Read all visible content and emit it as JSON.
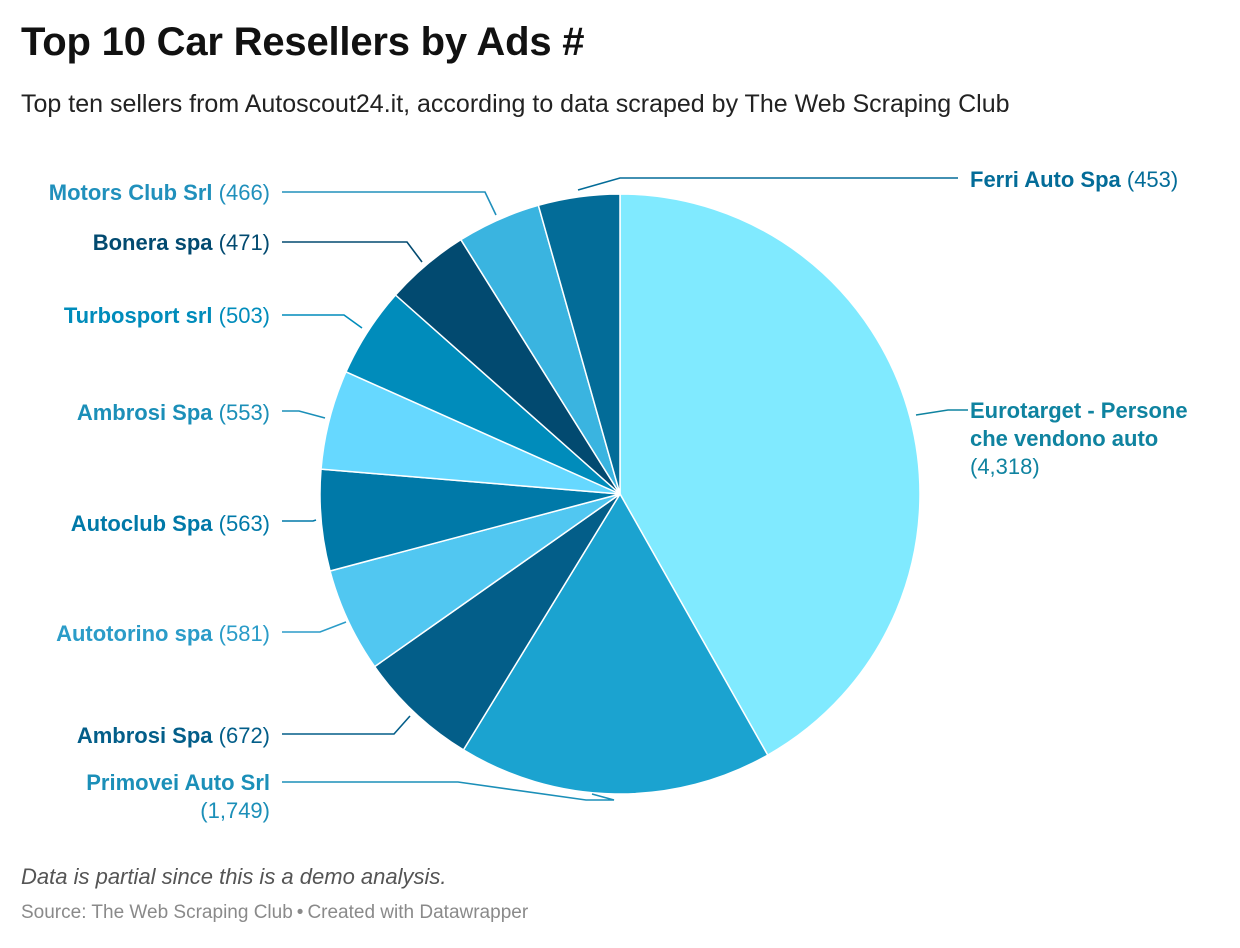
{
  "header": {
    "title": "Top 10 Car Resellers by Ads #",
    "subtitle": "Top ten sellers from Autoscout24.it, according to data scraped by The Web Scraping Club"
  },
  "chart_data": {
    "type": "pie",
    "title": "Top 10 Car Resellers by Ads #",
    "slices": [
      {
        "label": "Eurotarget - Persone che vendono auto",
        "value": 4318,
        "value_text": "(4,318)",
        "color": "#80EAFF",
        "label_color": "#0F83A0"
      },
      {
        "label": "Primovei Auto Srl",
        "value": 1749,
        "value_text": "(1,749)",
        "color": "#1BA3D0",
        "label_color": "#1B8FB8"
      },
      {
        "label": "Ambrosi Spa",
        "value": 672,
        "value_text": "(672)",
        "color": "#035E89",
        "label_color": "#035E89"
      },
      {
        "label": "Autotorino spa",
        "value": 581,
        "value_text": "(581)",
        "color": "#51C7F1",
        "label_color": "#2B9CC8"
      },
      {
        "label": "Autoclub Spa",
        "value": 563,
        "value_text": "(563)",
        "color": "#0079A8",
        "label_color": "#0079A8"
      },
      {
        "label": "Ambrosi Spa",
        "value": 553,
        "value_text": "(553)",
        "color": "#66D8FF",
        "label_color": "#1B8FB8"
      },
      {
        "label": "Turbosport srl",
        "value": 503,
        "value_text": "(503)",
        "color": "#008CBB",
        "label_color": "#008CBB"
      },
      {
        "label": "Bonera spa",
        "value": 471,
        "value_text": "(471)",
        "color": "#024A70",
        "label_color": "#024A70"
      },
      {
        "label": "Motors Club Srl",
        "value": 466,
        "value_text": "(466)",
        "color": "#3AB4E0",
        "label_color": "#2090BC"
      },
      {
        "label": "Ferri Auto Spa",
        "value": 453,
        "value_text": "(453)",
        "color": "#036C98",
        "label_color": "#036C98"
      }
    ]
  },
  "notes": "Data is partial since this is a demo analysis.",
  "footer": {
    "source_label": "Source: The Web Scraping Club",
    "separator": "•",
    "credit": "Created with Datawrapper"
  }
}
